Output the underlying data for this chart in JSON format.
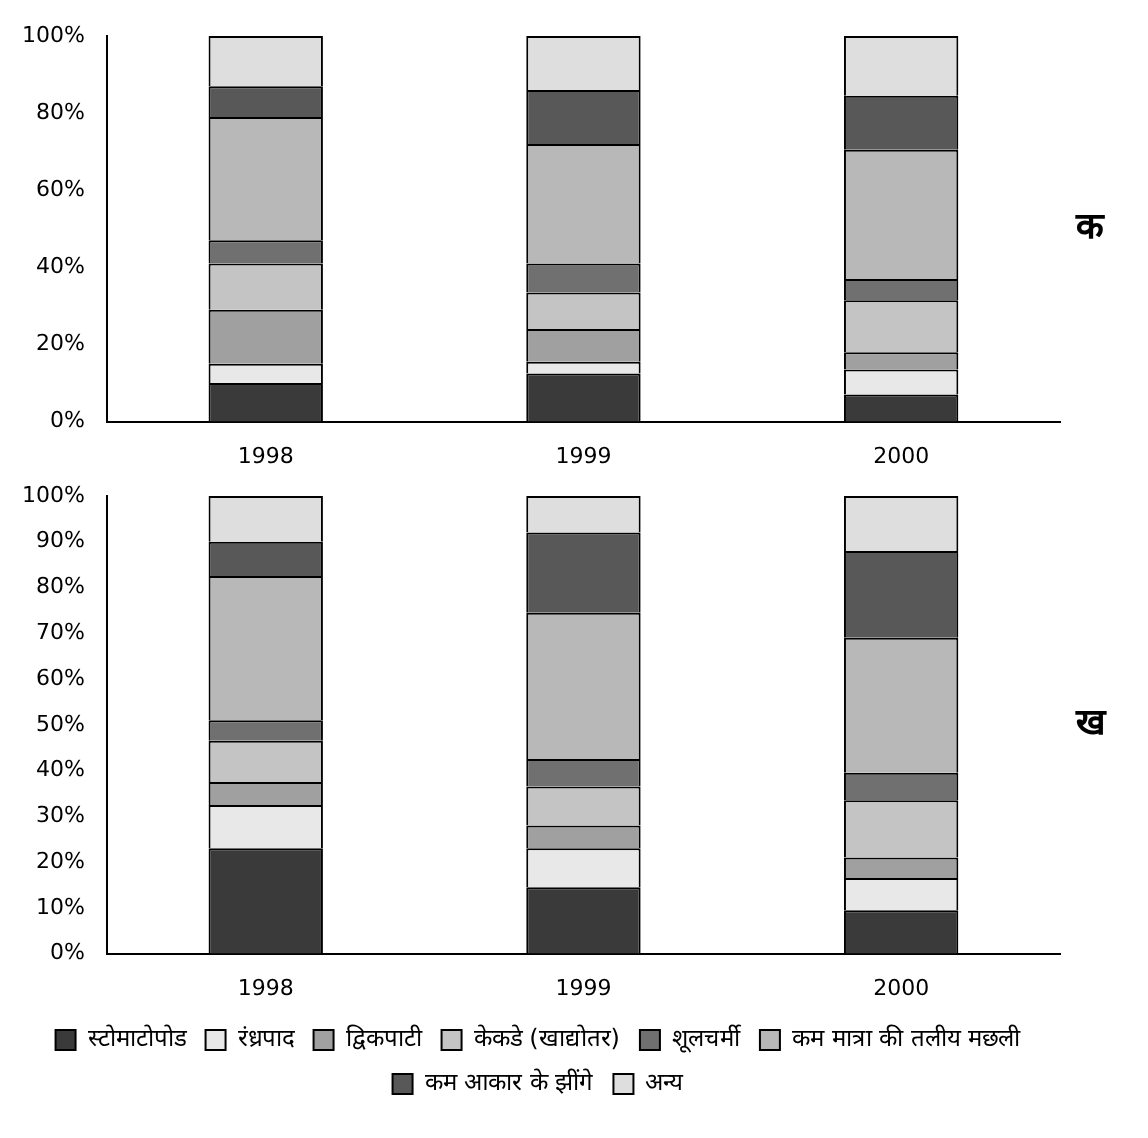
{
  "chart_data": [
    {
      "type": "bar",
      "stacked": true,
      "annotations": [
        "क"
      ],
      "categories": [
        "1998",
        "1999",
        "2000"
      ],
      "ylim": [
        0,
        100
      ],
      "yticks": [
        {
          "value": 0,
          "label": "0%"
        },
        {
          "value": 20,
          "label": "20%"
        },
        {
          "value": 40,
          "label": "40%"
        },
        {
          "value": 60,
          "label": "60%"
        },
        {
          "value": 80,
          "label": "80%"
        },
        {
          "value": 100,
          "label": "100%"
        }
      ],
      "grid": false,
      "legend": false,
      "series": [
        {
          "color": "#3a3a3a",
          "values": [
            10,
            12.5,
            7
          ]
        },
        {
          "color": "#e8e8e8",
          "values": [
            5,
            3,
            6.5
          ]
        },
        {
          "color": "#a0a0a0",
          "values": [
            14,
            8.5,
            4.5
          ]
        },
        {
          "color": "#c4c4c4",
          "values": [
            12,
            9.5,
            13.5
          ]
        },
        {
          "color": "#707070",
          "values": [
            6,
            7.5,
            5.5
          ]
        },
        {
          "color": "#b8b8b8",
          "values": [
            32,
            31,
            33.5
          ]
        },
        {
          "color": "#585858",
          "values": [
            8,
            14,
            14
          ]
        },
        {
          "color": "#dedede",
          "values": [
            13,
            14,
            15.5
          ]
        }
      ]
    },
    {
      "type": "bar",
      "stacked": true,
      "annotations": [
        "ख"
      ],
      "categories": [
        "1998",
        "1999",
        "2000"
      ],
      "ylim": [
        0,
        100
      ],
      "yticks": [
        {
          "value": 0,
          "label": "0%"
        },
        {
          "value": 10,
          "label": "10%"
        },
        {
          "value": 20,
          "label": "20%"
        },
        {
          "value": 30,
          "label": "30%"
        },
        {
          "value": 40,
          "label": "40%"
        },
        {
          "value": 50,
          "label": "50%"
        },
        {
          "value": 60,
          "label": "60%"
        },
        {
          "value": 70,
          "label": "70%"
        },
        {
          "value": 80,
          "label": "80%"
        },
        {
          "value": 90,
          "label": "90%"
        },
        {
          "value": 100,
          "label": "100%"
        }
      ],
      "grid": false,
      "legend": "bottom",
      "series": [
        {
          "name": "स्टोमाटोपोड",
          "color": "#3a3a3a",
          "values": [
            23,
            14.5,
            9.5
          ]
        },
        {
          "name": "रंध्रपाद",
          "color": "#e8e8e8",
          "values": [
            9.5,
            8.5,
            7
          ]
        },
        {
          "name": "द्विकपाटी",
          "color": "#a0a0a0",
          "values": [
            5,
            5,
            4.5
          ]
        },
        {
          "name": "केकडे (खाद्योतर)",
          "color": "#c4c4c4",
          "values": [
            9,
            8.5,
            12.5
          ]
        },
        {
          "name": "शूलचर्मी",
          "color": "#707070",
          "values": [
            4.5,
            6,
            6
          ]
        },
        {
          "name": "कम मात्रा की तलीय मछली",
          "color": "#b8b8b8",
          "values": [
            31.5,
            32,
            29.5
          ]
        },
        {
          "name": "कम आकार के झींगे",
          "color": "#585858",
          "values": [
            7.5,
            17.5,
            19
          ]
        },
        {
          "name": "अन्य",
          "color": "#dedede",
          "values": [
            10,
            8,
            12
          ]
        }
      ]
    }
  ]
}
